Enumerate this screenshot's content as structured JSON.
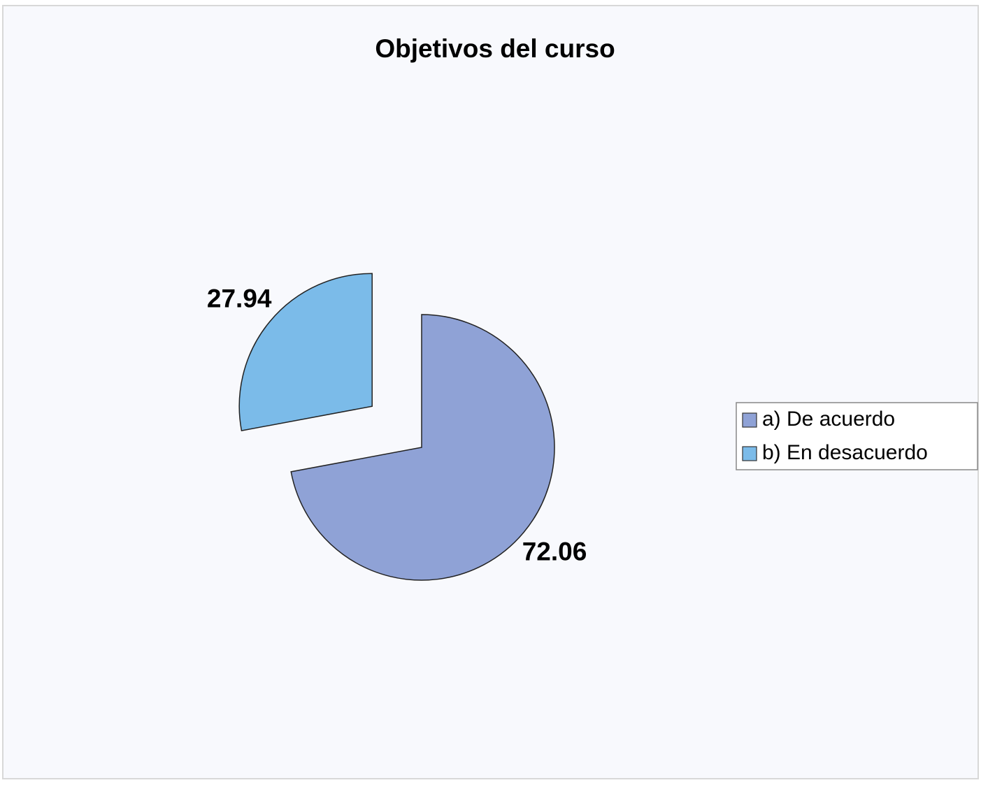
{
  "chart_data": {
    "type": "pie",
    "title": "Objetivos del curso",
    "categories": [
      "a) De acuerdo",
      "b) En desacuerdo"
    ],
    "values": [
      72.06,
      27.94
    ],
    "colors": [
      "#8fa2d6",
      "#7bbbe9"
    ],
    "legend": "right"
  }
}
